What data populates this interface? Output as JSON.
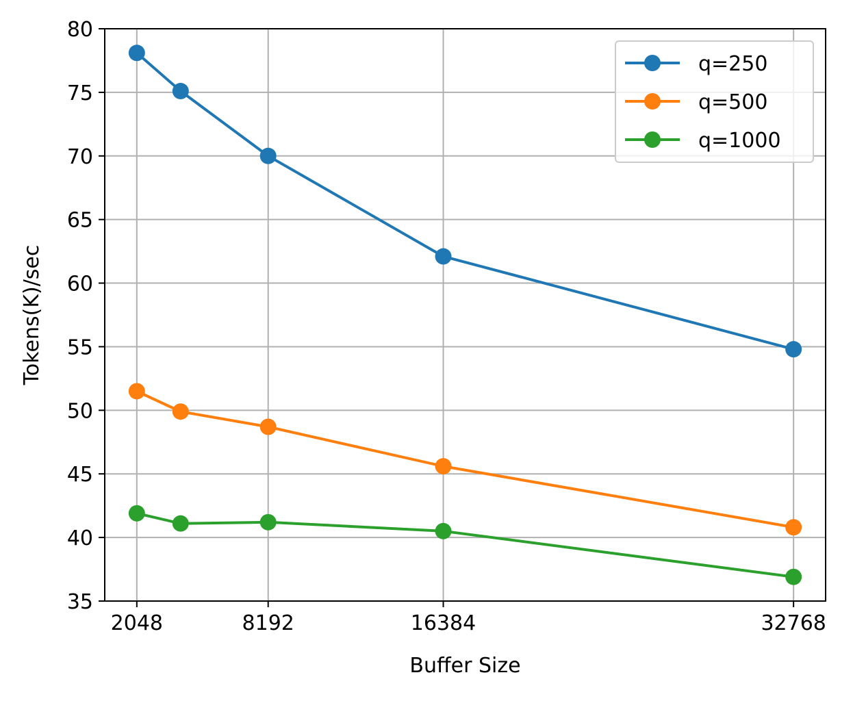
{
  "chart_data": {
    "type": "line",
    "title": "",
    "xlabel": "Buffer Size",
    "ylabel": "Tokens(K)/sec",
    "x": [
      2048,
      4096,
      8192,
      16384,
      32768
    ],
    "xticks": [
      2048,
      8192,
      16384,
      32768
    ],
    "xtick_labels": [
      "2048",
      "8192",
      "16384",
      "32768"
    ],
    "xlim": [
      548,
      34268
    ],
    "ylim": [
      35,
      80
    ],
    "yticks": [
      35,
      40,
      45,
      50,
      55,
      60,
      65,
      70,
      75,
      80
    ],
    "ytick_labels": [
      "35",
      "40",
      "45",
      "50",
      "55",
      "60",
      "65",
      "70",
      "75",
      "80"
    ],
    "grid": true,
    "legend_position": "top-right",
    "series": [
      {
        "name": "q=250",
        "color": "#1f77b4",
        "marker": "circle",
        "values": [
          78.1,
          75.1,
          70.0,
          62.1,
          54.8
        ]
      },
      {
        "name": "q=500",
        "color": "#ff7f0e",
        "marker": "circle",
        "values": [
          51.5,
          49.9,
          48.7,
          45.6,
          40.8
        ]
      },
      {
        "name": "q=1000",
        "color": "#2ca02c",
        "marker": "circle",
        "values": [
          41.9,
          41.1,
          41.2,
          40.5,
          36.9
        ]
      }
    ]
  }
}
